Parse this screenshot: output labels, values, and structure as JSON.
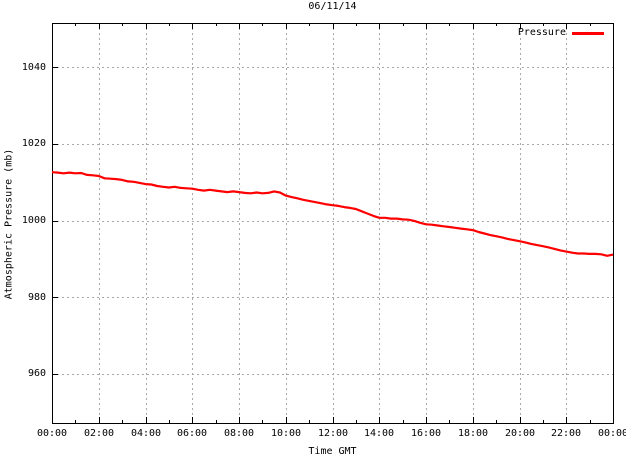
{
  "title": "06/11/14",
  "legend": {
    "label": "Pressure"
  },
  "colors": {
    "line": "#ff0000",
    "grid": "#a8a8a8",
    "axis": "#000000",
    "text": "#000000",
    "background": "#ffffff"
  },
  "chart_data": {
    "type": "line",
    "title": "06/11/14",
    "xlabel": "Time GMT",
    "ylabel": "Atmospheric Pressure (mb)",
    "xlim": [
      0,
      24
    ],
    "ylim": [
      947.2,
      1051.5
    ],
    "x_ticks": [
      0,
      2,
      4,
      6,
      8,
      10,
      12,
      14,
      16,
      18,
      20,
      22,
      24
    ],
    "x_tick_labels": [
      "00:00",
      "02:00",
      "04:00",
      "06:00",
      "08:00",
      "10:00",
      "12:00",
      "14:00",
      "16:00",
      "18:00",
      "20:00",
      "22:00",
      "00:00"
    ],
    "x_minor_step": 1,
    "y_ticks": [
      960,
      980,
      1000,
      1020,
      1040
    ],
    "y_tick_labels": [
      "960",
      "980",
      "1000",
      "1020",
      "1040"
    ],
    "grid": true,
    "grid_style": "dashed",
    "legend_position": "top-right",
    "series": [
      {
        "name": "Pressure",
        "color": "#ff0000",
        "x_unit": "hours GMT",
        "y_unit": "mb",
        "points": [
          [
            0.0,
            1012.6
          ],
          [
            0.25,
            1012.5
          ],
          [
            0.5,
            1012.3
          ],
          [
            0.75,
            1012.5
          ],
          [
            1.0,
            1012.3
          ],
          [
            1.25,
            1012.4
          ],
          [
            1.5,
            1011.9
          ],
          [
            1.75,
            1011.8
          ],
          [
            2.0,
            1011.6
          ],
          [
            2.25,
            1011.0
          ],
          [
            2.5,
            1010.9
          ],
          [
            2.75,
            1010.8
          ],
          [
            3.0,
            1010.6
          ],
          [
            3.25,
            1010.2
          ],
          [
            3.5,
            1010.1
          ],
          [
            3.75,
            1009.8
          ],
          [
            4.0,
            1009.5
          ],
          [
            4.25,
            1009.4
          ],
          [
            4.5,
            1009.0
          ],
          [
            4.75,
            1008.8
          ],
          [
            5.0,
            1008.6
          ],
          [
            5.25,
            1008.8
          ],
          [
            5.5,
            1008.5
          ],
          [
            5.75,
            1008.4
          ],
          [
            6.0,
            1008.3
          ],
          [
            6.25,
            1008.0
          ],
          [
            6.5,
            1007.8
          ],
          [
            6.75,
            1008.0
          ],
          [
            7.0,
            1007.8
          ],
          [
            7.25,
            1007.6
          ],
          [
            7.5,
            1007.4
          ],
          [
            7.75,
            1007.6
          ],
          [
            8.0,
            1007.4
          ],
          [
            8.25,
            1007.2
          ],
          [
            8.5,
            1007.1
          ],
          [
            8.75,
            1007.3
          ],
          [
            9.0,
            1007.1
          ],
          [
            9.25,
            1007.2
          ],
          [
            9.5,
            1007.6
          ],
          [
            9.75,
            1007.3
          ],
          [
            10.0,
            1006.5
          ],
          [
            10.25,
            1006.1
          ],
          [
            10.5,
            1005.8
          ],
          [
            10.75,
            1005.4
          ],
          [
            11.0,
            1005.1
          ],
          [
            11.25,
            1004.8
          ],
          [
            11.5,
            1004.5
          ],
          [
            11.75,
            1004.2
          ],
          [
            12.0,
            1004.0
          ],
          [
            12.25,
            1003.8
          ],
          [
            12.5,
            1003.5
          ],
          [
            12.75,
            1003.3
          ],
          [
            13.0,
            1003.0
          ],
          [
            13.25,
            1002.4
          ],
          [
            13.5,
            1001.8
          ],
          [
            13.75,
            1001.2
          ],
          [
            14.0,
            1000.7
          ],
          [
            14.25,
            1000.7
          ],
          [
            14.5,
            1000.5
          ],
          [
            14.75,
            1000.5
          ],
          [
            15.0,
            1000.3
          ],
          [
            15.25,
            1000.2
          ],
          [
            15.5,
            999.9
          ],
          [
            15.75,
            999.4
          ],
          [
            16.0,
            999.0
          ],
          [
            16.25,
            998.9
          ],
          [
            16.5,
            998.7
          ],
          [
            16.75,
            998.5
          ],
          [
            17.0,
            998.3
          ],
          [
            17.25,
            998.1
          ],
          [
            17.5,
            997.9
          ],
          [
            17.75,
            997.7
          ],
          [
            18.0,
            997.5
          ],
          [
            18.25,
            997.0
          ],
          [
            18.5,
            996.6
          ],
          [
            18.75,
            996.2
          ],
          [
            19.0,
            995.9
          ],
          [
            19.25,
            995.6
          ],
          [
            19.5,
            995.2
          ],
          [
            19.75,
            994.9
          ],
          [
            20.0,
            994.6
          ],
          [
            20.25,
            994.3
          ],
          [
            20.5,
            993.9
          ],
          [
            20.75,
            993.6
          ],
          [
            21.0,
            993.3
          ],
          [
            21.25,
            993.0
          ],
          [
            21.5,
            992.6
          ],
          [
            21.75,
            992.2
          ],
          [
            22.0,
            991.9
          ],
          [
            22.25,
            991.6
          ],
          [
            22.5,
            991.4
          ],
          [
            22.75,
            991.4
          ],
          [
            23.0,
            991.3
          ],
          [
            23.25,
            991.3
          ],
          [
            23.5,
            991.2
          ],
          [
            23.75,
            990.8
          ],
          [
            24.0,
            991.1
          ]
        ]
      }
    ]
  }
}
